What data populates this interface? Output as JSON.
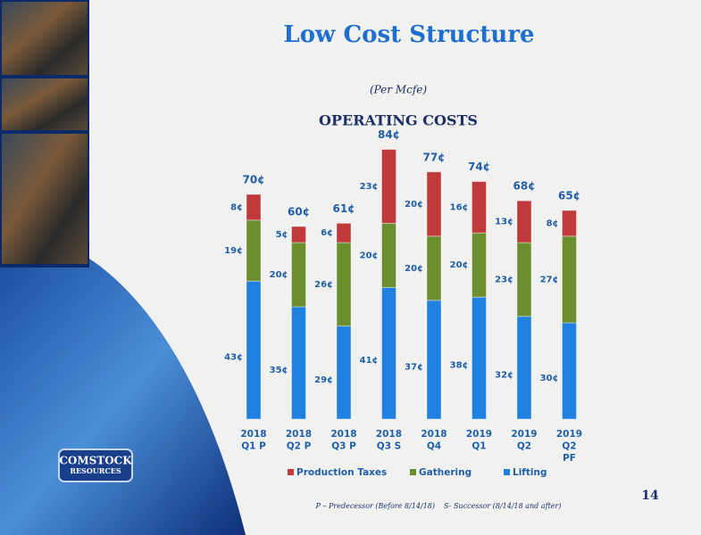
{
  "title": "Low Cost Structure",
  "subtitle": "(Per Mcfe)",
  "logo": [
    "COMSTOCK",
    "RESOURCES"
  ],
  "footnotes": [
    "P – Predecessor (Before 8/14/18)",
    "S- Successor (8/14/18 and after)"
  ],
  "page_number": "14",
  "chart_data": {
    "type": "stacked-bar",
    "title": "OPERATING COSTS",
    "categories": [
      [
        "2018",
        "Q1 P"
      ],
      [
        "2018",
        "Q2 P"
      ],
      [
        "2018",
        "Q3 P"
      ],
      [
        "2018",
        "Q3 S"
      ],
      [
        "2018",
        "Q4"
      ],
      [
        "2019",
        "Q1"
      ],
      [
        "2019",
        "Q2"
      ],
      [
        "2019",
        "Q2",
        "PF"
      ]
    ],
    "series": [
      {
        "name": "Lifting",
        "color": "#1f80e0",
        "values": [
          43,
          35,
          29,
          41,
          37,
          38,
          32,
          30
        ],
        "value_labels": [
          "43¢",
          "35¢",
          "29¢",
          "41¢",
          "37¢",
          "38¢",
          "32¢",
          "30¢"
        ]
      },
      {
        "name": "Gathering",
        "color": "#6b8e2f",
        "values": [
          19,
          20,
          26,
          20,
          20,
          20,
          23,
          27
        ],
        "value_labels": [
          "19¢",
          "20¢",
          "26¢",
          "20¢",
          "20¢",
          "20¢",
          "23¢",
          "27¢"
        ]
      },
      {
        "name": "Production Taxes",
        "color": "#c0393b",
        "values": [
          8,
          5,
          6,
          23,
          20,
          16,
          13,
          8
        ],
        "value_labels": [
          "8¢",
          "5¢",
          "6¢",
          "23¢",
          "20¢",
          "16¢",
          "13¢",
          "8¢"
        ]
      }
    ],
    "totals": [
      70,
      60,
      61,
      84,
      77,
      74,
      68,
      65
    ],
    "total_labels": [
      "70¢",
      "60¢",
      "61¢",
      "84¢",
      "77¢",
      "74¢",
      "68¢",
      "65¢"
    ]
  }
}
